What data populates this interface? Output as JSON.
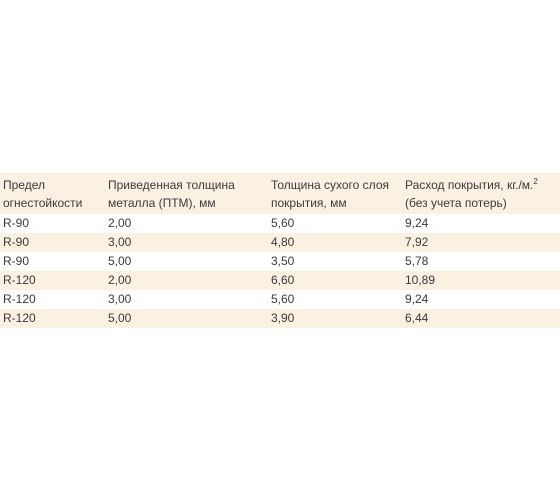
{
  "table": {
    "headers": [
      {
        "line1": "Предел",
        "line2": "огнестойкости"
      },
      {
        "line1": "Приведенная толщина",
        "line2": "металла (ПТМ), мм"
      },
      {
        "line1": "Толщина сухого слоя",
        "line2": "покрытия, мм"
      },
      {
        "line1": "Расход покрытия, кг./м.",
        "sup": "2",
        "line2": "(без учета потерь)"
      }
    ],
    "rows": [
      [
        "R-90",
        "2,00",
        "5,60",
        "9,24"
      ],
      [
        "R-90",
        "3,00",
        "4,80",
        "7,92"
      ],
      [
        "R-90",
        "5,00",
        "3,50",
        "5,78"
      ],
      [
        "R-120",
        "2,00",
        "6,60",
        "10,89"
      ],
      [
        "R-120",
        "3,00",
        "5,60",
        "9,24"
      ],
      [
        "R-120",
        "5,00",
        "3,90",
        "6,44"
      ]
    ]
  },
  "colors": {
    "stripe": "#fbf1e3",
    "text": "#3a3a3a"
  }
}
